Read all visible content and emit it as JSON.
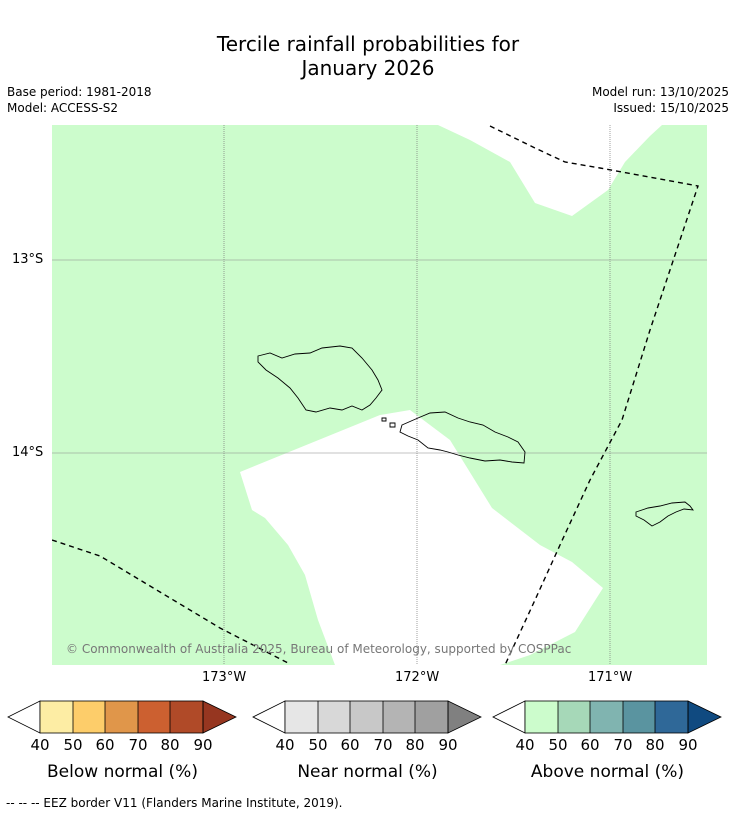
{
  "title": {
    "line1": "Tercile rainfall probabilities for",
    "line2": "January 2026"
  },
  "meta": {
    "base_period": "Base period: 1981-2018",
    "model": "Model: ACCESS-S2",
    "model_run": "Model run: 13/10/2025",
    "issued": "Issued: 15/10/2025"
  },
  "axes": {
    "lat_labels": [
      "13°S",
      "14°S"
    ],
    "lon_labels": [
      "173°W",
      "172°W",
      "171°W"
    ]
  },
  "copyright": "© Commonwealth of Australia 2025, Bureau of Meteorology, supported by COSPPac",
  "colorbars": [
    {
      "label": "Below normal (%)",
      "ticks": [
        "40",
        "50",
        "60",
        "70",
        "80",
        "90"
      ],
      "colors": [
        "#fdeda4",
        "#fdcd6a",
        "#e0964a",
        "#cc6030",
        "#b04a28",
        "#963620"
      ]
    },
    {
      "label": "Near normal (%)",
      "ticks": [
        "40",
        "50",
        "60",
        "70",
        "80",
        "90"
      ],
      "colors": [
        "#e6e6e6",
        "#d8d8d8",
        "#c8c8c8",
        "#b4b4b4",
        "#a0a0a0",
        "#808080"
      ]
    },
    {
      "label": "Above normal (%)",
      "ticks": [
        "40",
        "50",
        "60",
        "70",
        "80",
        "90"
      ],
      "colors": [
        "#ccfccc",
        "#a6d8b8",
        "#80b4b0",
        "#5a94a0",
        "#2f6898",
        "#104a80"
      ]
    }
  ],
  "map_colors": {
    "above_normal_40_50": "#ccfccc"
  },
  "footnote": "--  --  -- EEZ border V11 (Flanders Marine Institute, 2019)."
}
